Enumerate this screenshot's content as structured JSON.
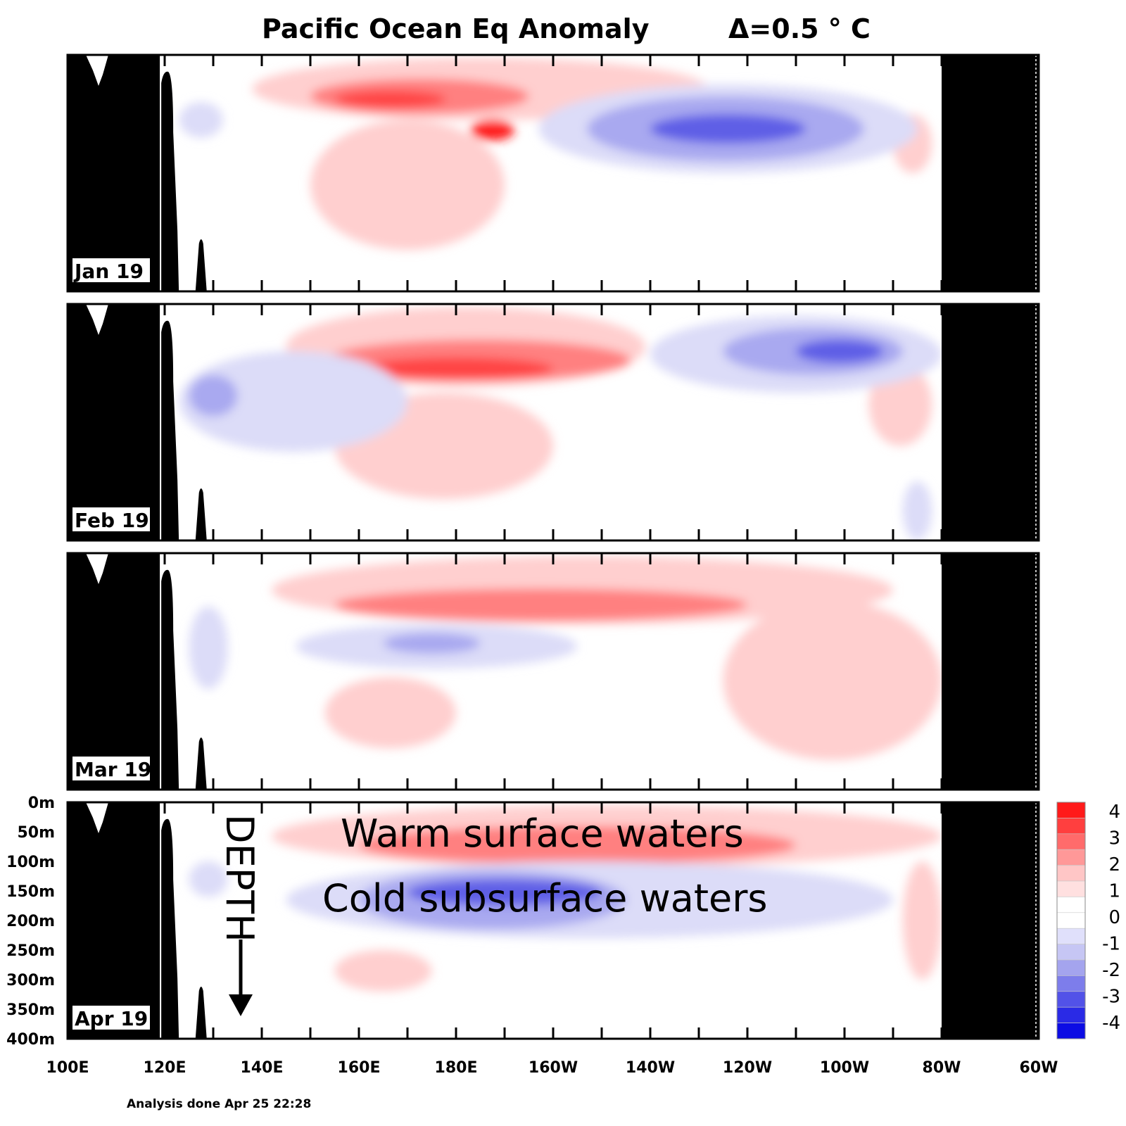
{
  "chart_data": {
    "type": "heatmap",
    "title": "Pacific Ocean Eq Anomaly",
    "contour_interval": "Δ=0.5 ° C",
    "x_ticks": [
      "100E",
      "120E",
      "140E",
      "160E",
      "180E",
      "160W",
      "140W",
      "120W",
      "100W",
      "80W",
      "60W"
    ],
    "y_ticks": [
      "0m",
      "50m",
      "100m",
      "150m",
      "200m",
      "250m",
      "300m",
      "350m",
      "400m"
    ],
    "y_range_m": [
      0,
      400
    ],
    "colorbar": {
      "labels": [
        "4",
        "3",
        "2",
        "1",
        "0",
        "-1",
        "-2",
        "-3",
        "-4"
      ],
      "colors": [
        "#ff1a1a",
        "#ff3f3f",
        "#ff6b6b",
        "#ff9898",
        "#ffc6c6",
        "#ffe0e0",
        "#ffffff",
        "#ffffff",
        "#e0e0fb",
        "#c6c6f4",
        "#a4a4ee",
        "#7d7deb",
        "#5252e8",
        "#2a2ae6",
        "#0c0ce4"
      ]
    },
    "panels": [
      {
        "label": "Jan 19",
        "regions": [
          {
            "level": 1,
            "lon": [
              138,
              232
            ],
            "depth": [
              5,
              110
            ]
          },
          {
            "level": 2,
            "lon": [
              150,
              195
            ],
            "depth": [
              40,
              100
            ]
          },
          {
            "level": 3,
            "lon": [
              155,
              178
            ],
            "depth": [
              60,
              90
            ]
          },
          {
            "level": 4,
            "lon": [
              183,
              192
            ],
            "depth": [
              110,
              145
            ]
          },
          {
            "level": 1,
            "lon": [
              150,
              190
            ],
            "depth": [
              110,
              330
            ]
          },
          {
            "level": 1,
            "lon": [
              270,
              278
            ],
            "depth": [
              100,
              200
            ]
          },
          {
            "level": -1,
            "lon": [
              123,
              132
            ],
            "depth": [
              80,
              140
            ]
          },
          {
            "level": -1,
            "lon": [
              197,
              275
            ],
            "depth": [
              50,
              200
            ]
          },
          {
            "level": -2,
            "lon": [
              207,
              264
            ],
            "depth": [
              70,
              180
            ]
          },
          {
            "level": -3,
            "lon": [
              220,
              252
            ],
            "depth": [
              100,
              150
            ]
          }
        ]
      },
      {
        "label": "Feb 19",
        "regions": [
          {
            "level": 1,
            "lon": [
              145,
              219
            ],
            "depth": [
              5,
              140
            ]
          },
          {
            "level": 2,
            "lon": [
              153,
              216
            ],
            "depth": [
              60,
              130
            ]
          },
          {
            "level": 3,
            "lon": [
              160,
              200
            ],
            "depth": [
              90,
              130
            ]
          },
          {
            "level": 1,
            "lon": [
              155,
              200
            ],
            "depth": [
              150,
              330
            ]
          },
          {
            "level": 1,
            "lon": [
              265,
              278
            ],
            "depth": [
              100,
              240
            ]
          },
          {
            "level": -1,
            "lon": [
              123,
              170
            ],
            "depth": [
              80,
              250
            ]
          },
          {
            "level": -2,
            "lon": [
              125,
              135
            ],
            "depth": [
              120,
              190
            ]
          },
          {
            "level": -1,
            "lon": [
              220,
              280
            ],
            "depth": [
              20,
              150
            ]
          },
          {
            "level": -2,
            "lon": [
              235,
              272
            ],
            "depth": [
              40,
              120
            ]
          },
          {
            "level": -3,
            "lon": [
              250,
              268
            ],
            "depth": [
              60,
              100
            ]
          },
          {
            "level": -1,
            "lon": [
              272,
              278
            ],
            "depth": [
              300,
              400
            ]
          }
        ]
      },
      {
        "label": "Mar 19",
        "regions": [
          {
            "level": 1,
            "lon": [
              142,
              270
            ],
            "depth": [
              5,
              120
            ]
          },
          {
            "level": 2,
            "lon": [
              155,
              240
            ],
            "depth": [
              60,
              115
            ]
          },
          {
            "level": 1,
            "lon": [
              153,
              180
            ],
            "depth": [
              210,
              330
            ]
          },
          {
            "level": 1,
            "lon": [
              235,
              280
            ],
            "depth": [
              80,
              350
            ]
          },
          {
            "level": -1,
            "lon": [
              147,
              205
            ],
            "depth": [
              120,
              195
            ]
          },
          {
            "level": -2,
            "lon": [
              165,
              185
            ],
            "depth": [
              135,
              170
            ]
          },
          {
            "level": -1,
            "lon": [
              125,
              133
            ],
            "depth": [
              90,
              230
            ]
          }
        ]
      },
      {
        "label": "Apr 19",
        "regions": [
          {
            "level": 1,
            "lon": [
              142,
              280
            ],
            "depth": [
              5,
              110
            ]
          },
          {
            "level": 2,
            "lon": [
              160,
              250
            ],
            "depth": [
              40,
              105
            ]
          },
          {
            "level": 1,
            "lon": [
              155,
              175
            ],
            "depth": [
              250,
              320
            ]
          },
          {
            "level": 1,
            "lon": [
              272,
              280
            ],
            "depth": [
              100,
              300
            ]
          },
          {
            "level": -1,
            "lon": [
              145,
              270
            ],
            "depth": [
              100,
              230
            ]
          },
          {
            "level": -2,
            "lon": [
              160,
              215
            ],
            "depth": [
              115,
              215
            ]
          },
          {
            "level": -3,
            "lon": [
              170,
              210
            ],
            "depth": [
              130,
              175
            ]
          },
          {
            "level": -1,
            "lon": [
              125,
              133
            ],
            "depth": [
              100,
              160
            ]
          }
        ]
      }
    ]
  },
  "annotations": {
    "warm": "Warm surface waters",
    "cold": "Cold subsurface waters",
    "depth": "DEPTH"
  },
  "footer": "Analysis done Apr 25 22:28"
}
